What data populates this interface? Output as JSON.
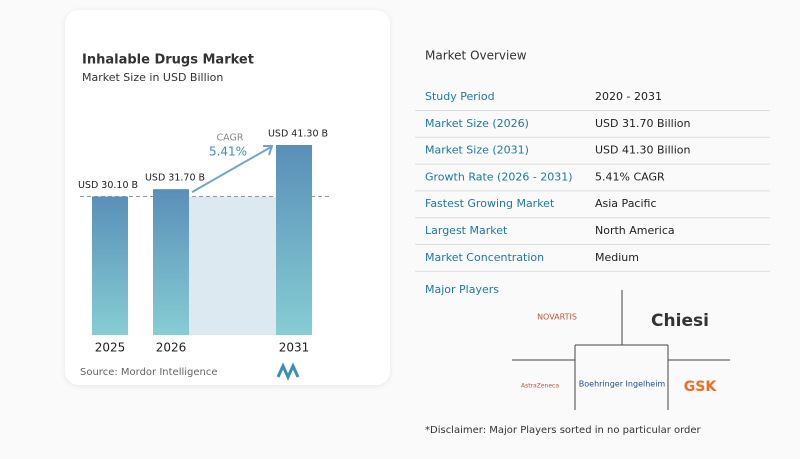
{
  "chart_data": {
    "type": "bar",
    "title": "Inhalable Drugs Market",
    "subtitle": "Market Size in USD Billion",
    "categories": [
      "2025",
      "2026",
      "2031"
    ],
    "values": [
      30.1,
      31.7,
      41.3
    ],
    "value_labels": [
      "USD 30.10 B",
      "USD 31.70 B",
      "USD 41.30 B"
    ],
    "color": "#5a8fb8",
    "annotation": "CAGR",
    "cagr": {
      "value": 5.41,
      "label": "5.41%"
    },
    "source": "Source: Mordor Intelligence"
  },
  "overview": {
    "title": "Market Overview",
    "rows": [
      [
        "Study Period",
        "2020 - 2031"
      ],
      [
        "Market Size (2026)",
        "USD 31.70 Billion"
      ],
      [
        "Market Size (2031)",
        "USD 41.30 Billion"
      ],
      [
        "Growth Rate (2026 - 2031)",
        "5.41% CAGR"
      ],
      [
        "Fastest Growing Market",
        "Asia Pacific"
      ],
      [
        "Largest Market",
        "North America"
      ],
      [
        "Market Concentration",
        "Medium"
      ]
    ]
  },
  "players": {
    "title": "Major Players",
    "names": [
      "NOVARTIS",
      "Chiesi",
      "AstraZeneca",
      "Boehringer Ingelheim",
      "GSK"
    ]
  },
  "disclaimer": "*Disclaimer: Major Players sorted in no particular order"
}
